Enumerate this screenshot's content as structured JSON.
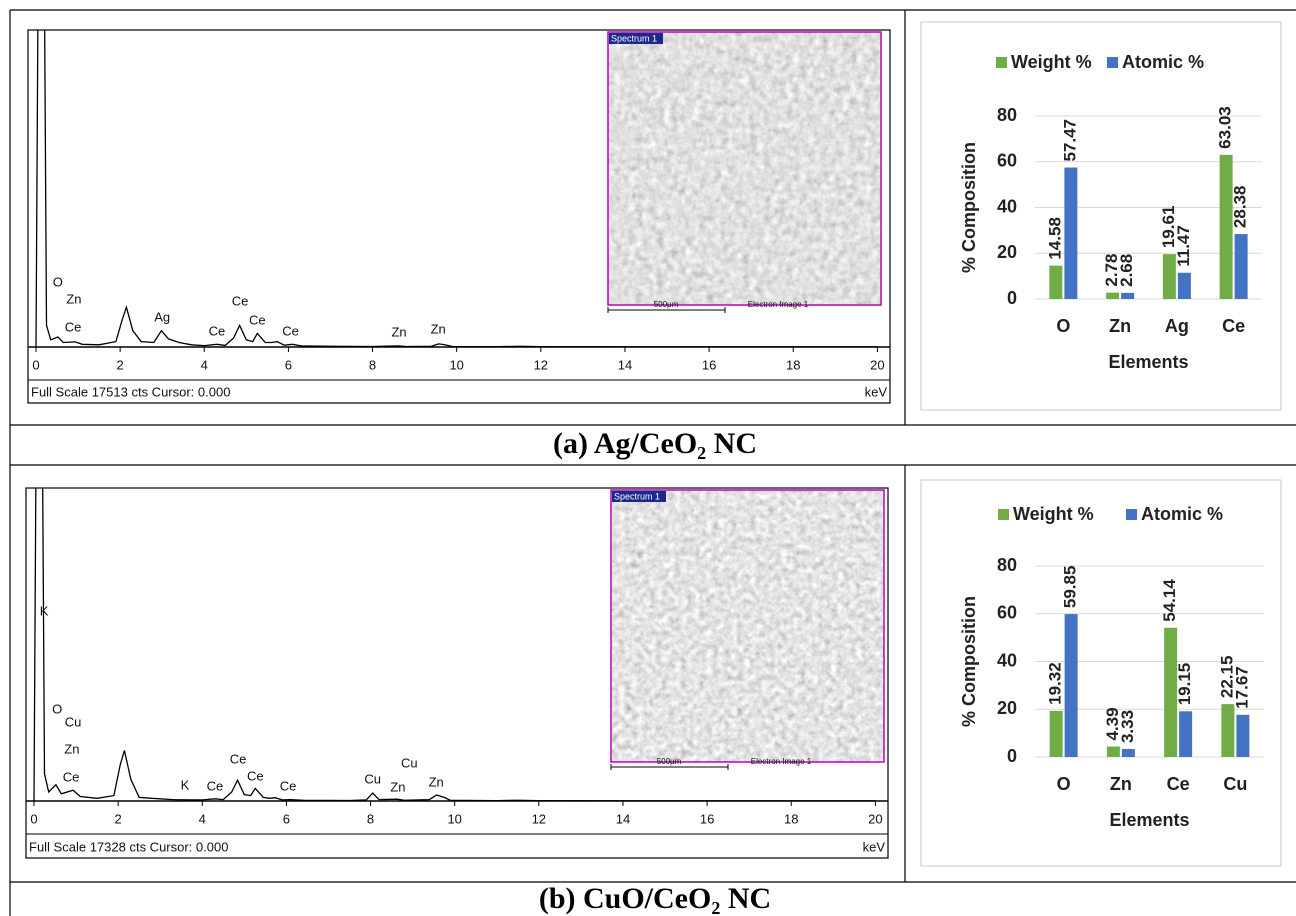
{
  "chart_data": [
    {
      "type": "line",
      "footer": "Full Scale 17513 cts Cursor: 0.000",
      "x_unit": "keV",
      "xlim": [
        -0.19,
        20.3
      ],
      "ylim": [
        0,
        17513
      ],
      "xticks": [
        0,
        2,
        4,
        6,
        8,
        10,
        12,
        14,
        16,
        18,
        20
      ],
      "x": [
        0,
        0.05,
        0.2,
        0.25,
        0.35,
        0.52,
        0.65,
        0.93,
        1.1,
        1.5,
        1.9,
        2.05,
        2.15,
        2.3,
        2.5,
        2.8,
        2.98,
        3.15,
        3.4,
        3.7,
        4.0,
        4.3,
        4.5,
        4.7,
        4.84,
        5.0,
        5.15,
        5.26,
        5.45,
        5.6,
        5.73,
        5.9,
        6.1,
        6.3,
        7,
        8,
        8.63,
        8.8,
        9.4,
        9.57,
        9.7,
        9.9,
        11,
        11.5,
        12,
        20
      ],
      "series": [
        {
          "color": "#000000",
          "values": [
            0,
            20000,
            20000,
            1200,
            400,
            550,
            250,
            280,
            150,
            120,
            300,
            1500,
            2200,
            900,
            300,
            250,
            900,
            450,
            250,
            120,
            80,
            150,
            90,
            500,
            1200,
            400,
            300,
            750,
            250,
            250,
            300,
            100,
            150,
            60,
            40,
            30,
            60,
            30,
            40,
            170,
            130,
            30,
            20,
            40,
            15,
            10
          ]
        }
      ],
      "annotations": [
        {
          "text": "O",
          "x": 0.52
        },
        {
          "text": "Zn",
          "x": 0.9
        },
        {
          "text": "Ce",
          "x": 0.88
        },
        {
          "text": "Ag",
          "x": 3.0
        },
        {
          "text": "Ce",
          "x": 4.3
        },
        {
          "text": "Ce",
          "x": 4.85
        },
        {
          "text": "Ce",
          "x": 5.26
        },
        {
          "text": "Ce",
          "x": 6.05
        },
        {
          "text": "Zn",
          "x": 8.63
        },
        {
          "text": "Zn",
          "x": 9.56
        }
      ],
      "image": {
        "title": "Spectrum 1",
        "scale": "500µm",
        "caption": "Electron Image 1"
      }
    },
    {
      "type": "bar",
      "categories": [
        "O",
        "Zn",
        "Ag",
        "Ce"
      ],
      "series": [
        {
          "name": "Weight %",
          "color": "#70ad47",
          "values": [
            14.58,
            2.78,
            19.61,
            63.03
          ]
        },
        {
          "name": "Atomic %",
          "color": "#4472c4",
          "values": [
            57.47,
            2.68,
            11.47,
            28.38
          ]
        }
      ],
      "ylim": [
        0,
        80
      ],
      "yticks": [
        0,
        20,
        40,
        60,
        80
      ],
      "grid": true,
      "legend": "top",
      "x_label": "Elements",
      "y_label": "% Composition"
    },
    {
      "type": "line",
      "footer": "Full Scale 17328 cts Cursor: 0.000",
      "x_unit": "keV",
      "xlim": [
        -0.19,
        20.3
      ],
      "ylim": [
        0,
        17328
      ],
      "xticks": [
        0,
        2,
        4,
        6,
        8,
        10,
        12,
        14,
        16,
        18,
        20
      ],
      "x": [
        0,
        0.05,
        0.2,
        0.25,
        0.35,
        0.52,
        0.65,
        0.93,
        1.1,
        1.5,
        1.9,
        2.05,
        2.15,
        2.3,
        2.5,
        2.8,
        3.3,
        3.7,
        4.0,
        4.3,
        4.5,
        4.7,
        4.84,
        5.0,
        5.15,
        5.26,
        5.45,
        5.6,
        5.73,
        5.9,
        6.1,
        6.4,
        7.5,
        7.9,
        8.05,
        8.2,
        8.63,
        8.8,
        9.4,
        9.57,
        9.75,
        9.9,
        11,
        11.5,
        12,
        20
      ],
      "series": [
        {
          "color": "#000000",
          "values": [
            0,
            20000,
            20000,
            1500,
            500,
            900,
            400,
            600,
            250,
            150,
            300,
            2000,
            2800,
            1200,
            200,
            150,
            80,
            60,
            60,
            120,
            80,
            500,
            1150,
            350,
            300,
            700,
            200,
            150,
            180,
            60,
            80,
            40,
            30,
            60,
            440,
            80,
            100,
            40,
            80,
            330,
            200,
            40,
            20,
            40,
            15,
            10
          ]
        }
      ],
      "annotations": [
        {
          "text": "K",
          "x": 0.24
        },
        {
          "text": "O",
          "x": 0.55
        },
        {
          "text": "Cu",
          "x": 0.93
        },
        {
          "text": "Zn",
          "x": 0.9
        },
        {
          "text": "Ce",
          "x": 0.88
        },
        {
          "text": "K",
          "x": 3.59
        },
        {
          "text": "Ce",
          "x": 4.3
        },
        {
          "text": "Ce",
          "x": 4.85
        },
        {
          "text": "Ce",
          "x": 5.26
        },
        {
          "text": "Ce",
          "x": 6.04
        },
        {
          "text": "Cu",
          "x": 8.05
        },
        {
          "text": "Zn",
          "x": 8.65
        },
        {
          "text": "Cu",
          "x": 8.92
        },
        {
          "text": "Zn",
          "x": 9.56
        }
      ],
      "image": {
        "title": "Spectrum 1",
        "scale": "500µm",
        "caption": "Electron Image 1"
      }
    },
    {
      "type": "bar",
      "categories": [
        "O",
        "Zn",
        "Ce",
        "Cu"
      ],
      "series": [
        {
          "name": "Weight %",
          "color": "#70ad47",
          "values": [
            19.32,
            4.39,
            54.14,
            22.15
          ]
        },
        {
          "name": "Atomic %",
          "color": "#4472c4",
          "values": [
            59.85,
            3.33,
            19.15,
            17.67
          ]
        }
      ],
      "ylim": [
        0,
        80
      ],
      "yticks": [
        0,
        20,
        40,
        60,
        80
      ],
      "grid": true,
      "legend": "top",
      "x_label": "Elements",
      "y_label": "% Composition"
    }
  ],
  "captions": [
    "(a) Ag/CeO₂ NC",
    "(b) CuO/CeO₂ NC"
  ]
}
